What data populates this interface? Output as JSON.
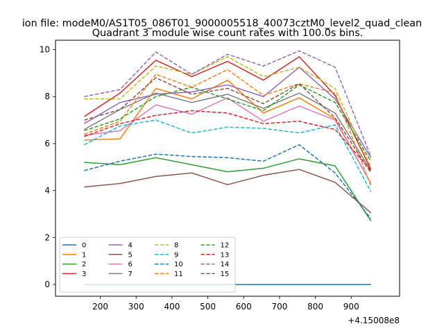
{
  "chart_data": {
    "type": "line",
    "suptitle": "ion file: modeM0/AS1T05_086T01_9000005518_40073cztM0_level2_quad_clean",
    "title": "Quadrant 3 module wise count rates with 100.0s bins.",
    "xlabel": "",
    "ylabel": "",
    "x": [
      155,
      255,
      355,
      455,
      555,
      655,
      755,
      855,
      955
    ],
    "xlim": [
      75,
      1035
    ],
    "ylim": [
      -0.5,
      10.4
    ],
    "xticks": [
      200,
      300,
      400,
      500,
      600,
      700,
      800,
      900
    ],
    "yticks": [
      0,
      2,
      4,
      6,
      8,
      10
    ],
    "x_offset_label": "+4.15008e8",
    "legend": {
      "location": "lower-left",
      "columns": 4
    },
    "series": [
      {
        "name": "0",
        "color": "#1f77b4",
        "style": "solid",
        "values": [
          0,
          0,
          0,
          0,
          0,
          0,
          0,
          0,
          0
        ]
      },
      {
        "name": "1",
        "color": "#ff7f0e",
        "style": "solid",
        "values": [
          6.15,
          6.2,
          8.35,
          7.9,
          8.7,
          7.3,
          7.95,
          7.05,
          4.3
        ]
      },
      {
        "name": "2",
        "color": "#2ca02c",
        "style": "solid",
        "values": [
          5.2,
          5.1,
          5.4,
          5.1,
          4.8,
          4.95,
          5.35,
          5.05,
          2.7
        ]
      },
      {
        "name": "3",
        "color": "#d62728",
        "style": "solid",
        "values": [
          7.15,
          8.15,
          9.55,
          8.85,
          9.5,
          8.7,
          9.7,
          8.05,
          4.9
        ]
      },
      {
        "name": "4",
        "color": "#9467bd",
        "style": "solid",
        "values": [
          6.85,
          7.75,
          8.1,
          8.2,
          8.5,
          8.0,
          9.25,
          7.9,
          5.4
        ]
      },
      {
        "name": "5",
        "color": "#8c564b",
        "style": "solid",
        "values": [
          4.15,
          4.3,
          4.6,
          4.75,
          4.25,
          4.65,
          4.9,
          4.35,
          3.05
        ]
      },
      {
        "name": "6",
        "color": "#e377c2",
        "style": "solid",
        "values": [
          6.35,
          6.55,
          7.65,
          7.25,
          7.95,
          6.95,
          7.6,
          7.0,
          4.3
        ]
      },
      {
        "name": "7",
        "color": "#7f7f7f",
        "style": "solid",
        "values": [
          6.6,
          7.45,
          8.15,
          7.75,
          8.1,
          7.5,
          8.15,
          7.3,
          4.85
        ]
      },
      {
        "name": "8",
        "color": "#bcbd22",
        "style": "dashed",
        "values": [
          7.9,
          7.9,
          9.3,
          8.95,
          9.7,
          8.85,
          9.25,
          8.35,
          5.0
        ]
      },
      {
        "name": "9",
        "color": "#17becf",
        "style": "dashed",
        "values": [
          5.95,
          6.75,
          7.0,
          6.45,
          6.7,
          6.65,
          6.45,
          6.8,
          3.95
        ]
      },
      {
        "name": "10",
        "color": "#1f77b4",
        "style": "dashed",
        "values": [
          4.85,
          5.25,
          5.55,
          5.45,
          5.4,
          5.25,
          5.95,
          4.75,
          2.8
        ]
      },
      {
        "name": "11",
        "color": "#ff7f0e",
        "style": "dashed",
        "values": [
          6.4,
          6.95,
          8.95,
          8.4,
          9.15,
          8.05,
          8.55,
          8.15,
          4.2
        ]
      },
      {
        "name": "12",
        "color": "#2ca02c",
        "style": "dashed",
        "values": [
          6.55,
          7.05,
          8.0,
          8.4,
          7.9,
          7.4,
          8.5,
          7.75,
          5.25
        ]
      },
      {
        "name": "13",
        "color": "#d62728",
        "style": "dashed",
        "values": [
          6.3,
          6.85,
          7.2,
          7.4,
          7.3,
          6.85,
          6.95,
          6.6,
          4.85
        ]
      },
      {
        "name": "14",
        "color": "#9467bd",
        "style": "dashed",
        "values": [
          8.0,
          8.3,
          9.9,
          8.95,
          9.8,
          9.3,
          9.95,
          9.25,
          5.45
        ]
      },
      {
        "name": "15",
        "color": "#8c564b",
        "style": "dashed",
        "values": [
          7.0,
          7.45,
          8.8,
          8.1,
          8.35,
          7.7,
          8.55,
          7.1,
          4.75
        ]
      }
    ]
  }
}
